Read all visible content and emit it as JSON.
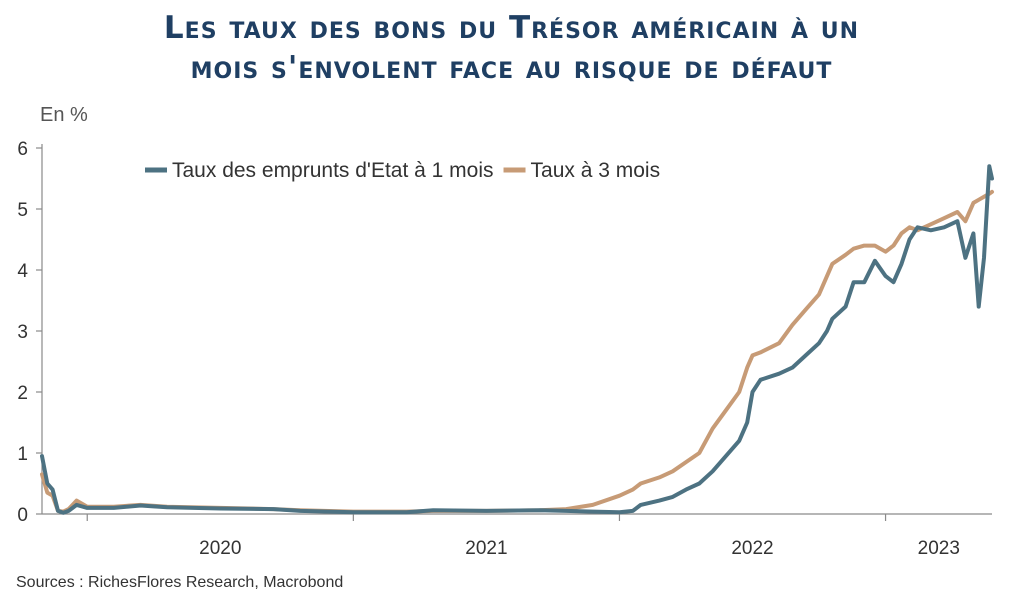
{
  "chart_data": {
    "type": "line",
    "title": "Les taux des bons du Trésor américain à un mois s'envolent face au risque de défaut",
    "unit_label": "En %",
    "ylim": [
      0,
      6
    ],
    "yticks": [
      0,
      1,
      2,
      3,
      4,
      5,
      6
    ],
    "xlim": [
      2019.83,
      2023.4
    ],
    "x_tick_positions": [
      2020.0,
      2021.0,
      2022.0,
      2023.0
    ],
    "x_year_labels": [
      {
        "label": "2020",
        "x": 2020.5
      },
      {
        "label": "2021",
        "x": 2021.5
      },
      {
        "label": "2022",
        "x": 2022.5
      },
      {
        "label": "2023",
        "x": 2023.2
      }
    ],
    "legend_position": "top",
    "grid": false,
    "series": [
      {
        "name": "Taux des emprunts d'Etat à 1 mois",
        "color": "#4d7282",
        "points": [
          [
            2019.83,
            0.95
          ],
          [
            2019.85,
            0.5
          ],
          [
            2019.87,
            0.4
          ],
          [
            2019.89,
            0.05
          ],
          [
            2019.91,
            0.02
          ],
          [
            2019.93,
            0.05
          ],
          [
            2019.96,
            0.15
          ],
          [
            2020.0,
            0.1
          ],
          [
            2020.1,
            0.1
          ],
          [
            2020.2,
            0.14
          ],
          [
            2020.3,
            0.11
          ],
          [
            2020.5,
            0.09
          ],
          [
            2020.7,
            0.08
          ],
          [
            2020.8,
            0.05
          ],
          [
            2021.0,
            0.03
          ],
          [
            2021.2,
            0.03
          ],
          [
            2021.3,
            0.06
          ],
          [
            2021.5,
            0.05
          ],
          [
            2021.7,
            0.06
          ],
          [
            2021.8,
            0.05
          ],
          [
            2021.9,
            0.04
          ],
          [
            2022.0,
            0.03
          ],
          [
            2022.05,
            0.05
          ],
          [
            2022.08,
            0.15
          ],
          [
            2022.15,
            0.22
          ],
          [
            2022.2,
            0.28
          ],
          [
            2022.25,
            0.4
          ],
          [
            2022.3,
            0.5
          ],
          [
            2022.35,
            0.7
          ],
          [
            2022.4,
            0.95
          ],
          [
            2022.45,
            1.2
          ],
          [
            2022.48,
            1.5
          ],
          [
            2022.5,
            2.0
          ],
          [
            2022.53,
            2.2
          ],
          [
            2022.6,
            2.3
          ],
          [
            2022.65,
            2.4
          ],
          [
            2022.7,
            2.6
          ],
          [
            2022.75,
            2.8
          ],
          [
            2022.78,
            3.0
          ],
          [
            2022.8,
            3.2
          ],
          [
            2022.85,
            3.4
          ],
          [
            2022.88,
            3.8
          ],
          [
            2022.92,
            3.8
          ],
          [
            2022.96,
            4.15
          ],
          [
            2023.0,
            3.9
          ],
          [
            2023.03,
            3.8
          ],
          [
            2023.06,
            4.1
          ],
          [
            2023.09,
            4.5
          ],
          [
            2023.12,
            4.7
          ],
          [
            2023.17,
            4.65
          ],
          [
            2023.22,
            4.7
          ],
          [
            2023.27,
            4.8
          ],
          [
            2023.3,
            4.2
          ],
          [
            2023.33,
            4.6
          ],
          [
            2023.35,
            3.4
          ],
          [
            2023.37,
            4.2
          ],
          [
            2023.39,
            5.7
          ],
          [
            2023.4,
            5.5
          ]
        ]
      },
      {
        "name": "Taux à 3 mois",
        "color": "#c79b76",
        "points": [
          [
            2019.83,
            0.65
          ],
          [
            2019.85,
            0.35
          ],
          [
            2019.87,
            0.3
          ],
          [
            2019.89,
            0.05
          ],
          [
            2019.91,
            0.04
          ],
          [
            2019.93,
            0.08
          ],
          [
            2019.96,
            0.22
          ],
          [
            2020.0,
            0.12
          ],
          [
            2020.1,
            0.12
          ],
          [
            2020.2,
            0.15
          ],
          [
            2020.3,
            0.12
          ],
          [
            2020.5,
            0.1
          ],
          [
            2020.7,
            0.08
          ],
          [
            2020.8,
            0.06
          ],
          [
            2021.0,
            0.04
          ],
          [
            2021.2,
            0.04
          ],
          [
            2021.3,
            0.05
          ],
          [
            2021.5,
            0.05
          ],
          [
            2021.7,
            0.06
          ],
          [
            2021.8,
            0.08
          ],
          [
            2021.9,
            0.15
          ],
          [
            2022.0,
            0.3
          ],
          [
            2022.05,
            0.4
          ],
          [
            2022.08,
            0.5
          ],
          [
            2022.15,
            0.6
          ],
          [
            2022.2,
            0.7
          ],
          [
            2022.25,
            0.85
          ],
          [
            2022.3,
            1.0
          ],
          [
            2022.35,
            1.4
          ],
          [
            2022.4,
            1.7
          ],
          [
            2022.45,
            2.0
          ],
          [
            2022.48,
            2.4
          ],
          [
            2022.5,
            2.6
          ],
          [
            2022.53,
            2.65
          ],
          [
            2022.6,
            2.8
          ],
          [
            2022.65,
            3.1
          ],
          [
            2022.7,
            3.35
          ],
          [
            2022.75,
            3.6
          ],
          [
            2022.78,
            3.9
          ],
          [
            2022.8,
            4.1
          ],
          [
            2022.85,
            4.25
          ],
          [
            2022.88,
            4.35
          ],
          [
            2022.92,
            4.4
          ],
          [
            2022.96,
            4.4
          ],
          [
            2023.0,
            4.3
          ],
          [
            2023.03,
            4.4
          ],
          [
            2023.06,
            4.6
          ],
          [
            2023.09,
            4.7
          ],
          [
            2023.12,
            4.65
          ],
          [
            2023.17,
            4.75
          ],
          [
            2023.22,
            4.85
          ],
          [
            2023.27,
            4.95
          ],
          [
            2023.3,
            4.8
          ],
          [
            2023.33,
            5.1
          ],
          [
            2023.35,
            5.15
          ],
          [
            2023.37,
            5.2
          ],
          [
            2023.39,
            5.25
          ],
          [
            2023.4,
            5.28
          ]
        ]
      }
    ],
    "source": "Sources : RichesFlores Research, Macrobond"
  }
}
